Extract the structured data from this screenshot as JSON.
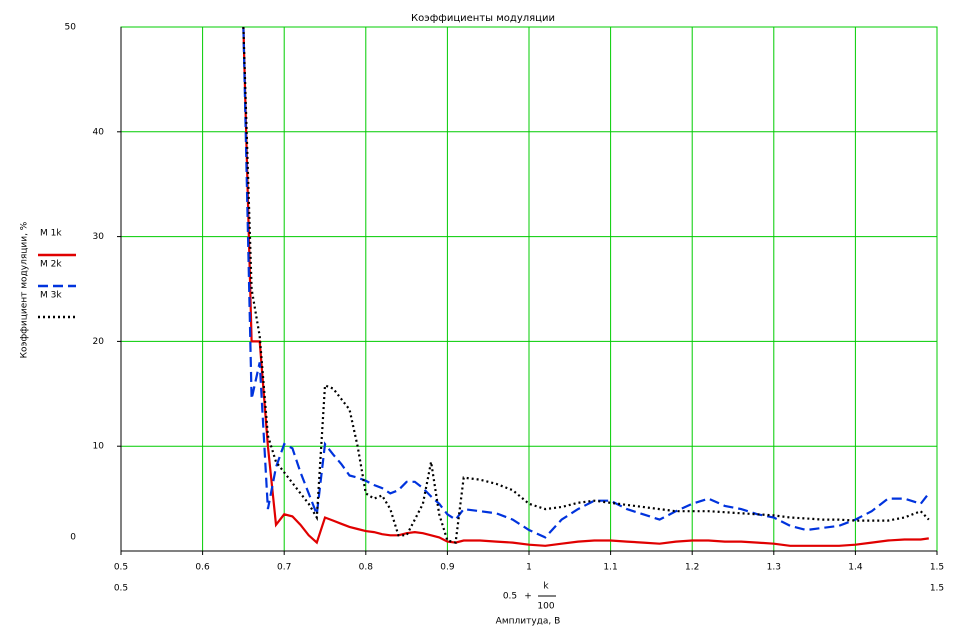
{
  "chart_data": {
    "type": "line",
    "title": "Коэффициенты модуляции",
    "y_label": "Коэффициент модуляции, %",
    "x_label": "Амплитуда, В",
    "x_expression": {
      "left": "0.5",
      "operator": "+",
      "numerator": "k",
      "denominator": "100"
    },
    "xlim": [
      0.5,
      1.5
    ],
    "ylim": [
      0,
      50
    ],
    "xticks": [
      0.5,
      0.6,
      0.7,
      0.8,
      0.9,
      1,
      1.1,
      1.2,
      1.3,
      1.4,
      1.5
    ],
    "yticks": [
      10,
      20,
      30,
      40
    ],
    "grid": true,
    "grid_color": "#00cc00",
    "legend": "left",
    "x": [
      0.65,
      0.66,
      0.67,
      0.68,
      0.69,
      0.7,
      0.71,
      0.72,
      0.73,
      0.74,
      0.75,
      0.76,
      0.77,
      0.78,
      0.79,
      0.8,
      0.81,
      0.82,
      0.83,
      0.84,
      0.85,
      0.86,
      0.87,
      0.88,
      0.89,
      0.9,
      0.91,
      0.92,
      0.94,
      0.96,
      0.98,
      1.0,
      1.02,
      1.04,
      1.06,
      1.08,
      1.1,
      1.12,
      1.14,
      1.16,
      1.18,
      1.2,
      1.22,
      1.24,
      1.26,
      1.28,
      1.3,
      1.32,
      1.34,
      1.36,
      1.38,
      1.4,
      1.42,
      1.44,
      1.46,
      1.48,
      1.49
    ],
    "series": [
      {
        "name": "M 1k",
        "color": "#e00000",
        "style": "solid",
        "values": [
          50,
          20,
          20,
          10,
          2.5,
          3.5,
          3.3,
          2.5,
          1.5,
          0.8,
          3.2,
          2.9,
          2.6,
          2.3,
          2.1,
          1.9,
          1.8,
          1.6,
          1.5,
          1.5,
          1.7,
          1.8,
          1.7,
          1.5,
          1.3,
          0.9,
          0.8,
          1.0,
          1.0,
          0.9,
          0.8,
          0.6,
          0.5,
          0.7,
          0.9,
          1.0,
          1.0,
          0.9,
          0.8,
          0.7,
          0.9,
          1.0,
          1.0,
          0.9,
          0.9,
          0.8,
          0.7,
          0.5,
          0.5,
          0.5,
          0.5,
          0.6,
          0.8,
          1.0,
          1.1,
          1.1,
          1.2
        ]
      },
      {
        "name": "M 2k",
        "color": "#0033dd",
        "style": "dashed",
        "values": [
          50,
          14.5,
          18,
          4,
          8,
          10.2,
          9.8,
          7.5,
          5.5,
          3.5,
          10.2,
          9.2,
          8.3,
          7.2,
          7.0,
          6.7,
          6.3,
          6.0,
          5.5,
          5.8,
          6.6,
          6.6,
          6.0,
          5.2,
          4.5,
          3.5,
          3.0,
          4.0,
          3.8,
          3.6,
          3.0,
          2.0,
          1.3,
          3.0,
          4.0,
          4.8,
          4.8,
          4.0,
          3.5,
          3.0,
          3.8,
          4.5,
          5.0,
          4.3,
          4.0,
          3.5,
          3.2,
          2.4,
          2.0,
          2.2,
          2.4,
          3.0,
          3.8,
          5.0,
          5.0,
          4.5,
          5.5
        ]
      },
      {
        "name": "M 3k",
        "color": "#000000",
        "style": "dotted",
        "values": [
          50,
          25,
          20.5,
          11,
          8.5,
          7.5,
          6.5,
          5.5,
          4.5,
          3.2,
          15.8,
          15.5,
          14.5,
          13.5,
          10,
          5.5,
          5.0,
          5.3,
          4.0,
          1.5,
          1.5,
          3.0,
          4.5,
          8.5,
          3.5,
          1.0,
          0.8,
          7.0,
          6.8,
          6.4,
          5.8,
          4.5,
          4.0,
          4.2,
          4.6,
          4.8,
          4.6,
          4.4,
          4.2,
          4.0,
          3.8,
          3.8,
          3.8,
          3.7,
          3.6,
          3.5,
          3.4,
          3.2,
          3.1,
          3.0,
          3.0,
          2.9,
          2.9,
          2.9,
          3.2,
          3.8,
          3.0
        ]
      }
    ]
  }
}
